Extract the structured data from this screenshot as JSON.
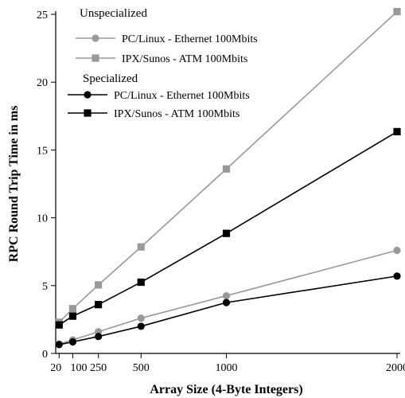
{
  "chart_data": {
    "type": "line",
    "xlabel": "Array Size (4-Byte Integers)",
    "ylabel": "RPC Round Trip Time in ms",
    "xlim": [
      0,
      2000
    ],
    "ylim": [
      0,
      25
    ],
    "x_ticks": [
      20,
      100,
      250,
      500,
      1000,
      2000
    ],
    "x_tick_labels": [
      "20",
      "100",
      "250",
      "500",
      "1000",
      "2000"
    ],
    "y_ticks": [
      0,
      5,
      10,
      15,
      20,
      25
    ],
    "grid": false,
    "legend_groups": [
      {
        "title": "Unspecialized",
        "series": [
          0,
          1
        ]
      },
      {
        "title": "Specialized",
        "series": [
          2,
          3
        ]
      }
    ],
    "legend_position": "top-left",
    "series": [
      {
        "name": "PC/Linux - Ethernet 100Mbits",
        "group": "Unspecialized",
        "color": "#999999",
        "marker": "circle",
        "x": [
          20,
          100,
          250,
          500,
          1000,
          2000
        ],
        "y": [
          0.7,
          1.0,
          1.6,
          2.6,
          4.25,
          7.6
        ]
      },
      {
        "name": "IPX/Sunos - ATM 100Mbits",
        "group": "Unspecialized",
        "color": "#999999",
        "marker": "square",
        "x": [
          20,
          100,
          250,
          500,
          1000,
          2000
        ],
        "y": [
          2.3,
          3.3,
          5.05,
          7.85,
          13.6,
          25.2
        ]
      },
      {
        "name": "PC/Linux - Ethernet 100Mbits",
        "group": "Specialized",
        "color": "#000000",
        "marker": "circle",
        "x": [
          20,
          100,
          250,
          500,
          1000,
          2000
        ],
        "y": [
          0.65,
          0.85,
          1.25,
          2.0,
          3.75,
          5.7
        ]
      },
      {
        "name": "IPX/Sunos - ATM 100Mbits",
        "group": "Specialized",
        "color": "#000000",
        "marker": "square",
        "x": [
          20,
          100,
          250,
          500,
          1000,
          2000
        ],
        "y": [
          2.1,
          2.75,
          3.6,
          5.25,
          8.85,
          16.35
        ]
      }
    ]
  }
}
